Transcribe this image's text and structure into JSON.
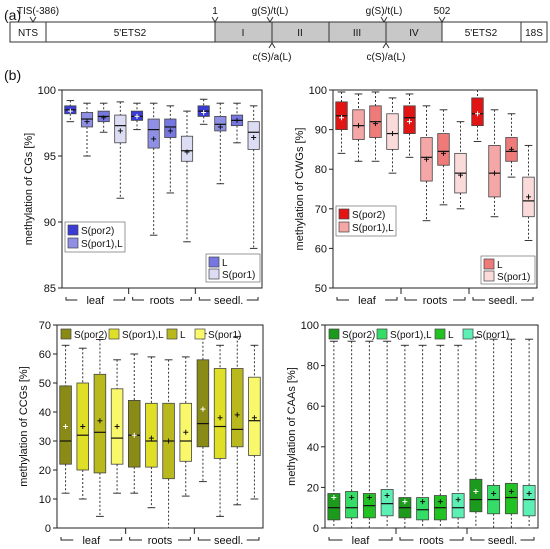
{
  "panel_a": {
    "label": "(a)",
    "left_end": "NTS",
    "right_end": "18S",
    "ets_left": "5'ETS2",
    "ets_right": "5'ETS2",
    "tis": "TIS(-386)",
    "pos_start": "1",
    "pos_end": "502",
    "segments": [
      "I",
      "II",
      "III",
      "IV"
    ],
    "motifs_top": [
      "g(S)/t(L)",
      "g(S)/t(L)"
    ],
    "motifs_bottom": [
      "c(S)/a(L)",
      "c(S)/a(L)"
    ]
  },
  "panel_b_label": "(b)",
  "colors": {
    "cg": [
      "#3b3bd6",
      "#8f8fe6",
      "#7777e2",
      "#dcdcf4"
    ],
    "cwg": [
      "#e21515",
      "#f5a6a6",
      "#ef7a7a",
      "#fbdada"
    ],
    "ccg": [
      "#8a8a16",
      "#dfdf28",
      "#b9b91e",
      "#f8f86a"
    ],
    "caa": [
      "#1c9a1c",
      "#33dd66",
      "#22c222",
      "#5cf0b4"
    ]
  },
  "chart_data": [
    {
      "type": "box",
      "ylabel": "methylation of CGs [%]",
      "ylim": [
        85,
        100
      ],
      "yticks": [
        "85",
        "90",
        "95",
        "100"
      ],
      "groups": [
        "leaf",
        "roots",
        "seedl."
      ],
      "legend": [
        "S(por2)",
        "S(por1),L",
        "L",
        "S(por1)"
      ],
      "boxes": [
        {
          "g": 0,
          "s": 0,
          "wlo": 97.6,
          "q1": 98.2,
          "med": 98.5,
          "q3": 98.8,
          "whi": 99.2,
          "mean": 98.4
        },
        {
          "g": 0,
          "s": 1,
          "wlo": 95.0,
          "q1": 97.2,
          "med": 97.8,
          "q3": 98.3,
          "whi": 99.0,
          "mean": 97.6
        },
        {
          "g": 0,
          "s": 2,
          "wlo": 96.8,
          "q1": 97.6,
          "med": 98.0,
          "q3": 98.4,
          "whi": 99.0,
          "mean": 97.9
        },
        {
          "g": 0,
          "s": 3,
          "wlo": 91.8,
          "q1": 96.0,
          "med": 97.3,
          "q3": 98.1,
          "whi": 99.1,
          "mean": 96.9
        },
        {
          "g": 1,
          "s": 0,
          "wlo": 97.0,
          "q1": 97.7,
          "med": 98.0,
          "q3": 98.4,
          "whi": 99.0,
          "mean": 98.0
        },
        {
          "g": 1,
          "s": 1,
          "wlo": 89.0,
          "q1": 95.6,
          "med": 97.0,
          "q3": 97.8,
          "whi": 99.0,
          "mean": 96.3
        },
        {
          "g": 1,
          "s": 2,
          "wlo": 92.2,
          "q1": 96.4,
          "med": 97.2,
          "q3": 97.8,
          "whi": 98.8,
          "mean": 96.9
        },
        {
          "g": 1,
          "s": 3,
          "wlo": 88.5,
          "q1": 94.6,
          "med": 95.4,
          "q3": 96.5,
          "whi": 98.4,
          "mean": 95.3
        },
        {
          "g": 2,
          "s": 0,
          "wlo": 97.4,
          "q1": 98.0,
          "med": 98.4,
          "q3": 98.8,
          "whi": 99.3,
          "mean": 98.3
        },
        {
          "g": 2,
          "s": 1,
          "wlo": 92.9,
          "q1": 96.9,
          "med": 97.4,
          "q3": 98.0,
          "whi": 99.0,
          "mean": 97.2
        },
        {
          "g": 2,
          "s": 2,
          "wlo": 96.0,
          "q1": 97.3,
          "med": 97.7,
          "q3": 98.1,
          "whi": 99.0,
          "mean": 97.7
        },
        {
          "g": 2,
          "s": 3,
          "wlo": 88.0,
          "q1": 95.5,
          "med": 96.8,
          "q3": 97.6,
          "whi": 98.8,
          "mean": 96.4
        }
      ]
    },
    {
      "type": "box",
      "ylabel": "methylation of CWGs [%]",
      "ylim": [
        50,
        100
      ],
      "yticks": [
        "50",
        "60",
        "70",
        "80",
        "90",
        "100"
      ],
      "groups": [
        "leaf",
        "roots",
        "seedl."
      ],
      "legend": [
        "S(por2)",
        "S(por1),L",
        "L",
        "S(por1)"
      ],
      "boxes": [
        {
          "g": 0,
          "s": 0,
          "wlo": 84,
          "q1": 90,
          "med": 93.5,
          "q3": 97,
          "whi": 99.5,
          "mean": 93
        },
        {
          "g": 0,
          "s": 1,
          "wlo": 82,
          "q1": 87.5,
          "med": 91,
          "q3": 95,
          "whi": 99,
          "mean": 91
        },
        {
          "g": 0,
          "s": 2,
          "wlo": 82,
          "q1": 88,
          "med": 92,
          "q3": 96,
          "whi": 99.5,
          "mean": 91.5
        },
        {
          "g": 0,
          "s": 3,
          "wlo": 79,
          "q1": 85,
          "med": 89,
          "q3": 94,
          "whi": 98,
          "mean": 89
        },
        {
          "g": 1,
          "s": 0,
          "wlo": 83,
          "q1": 89,
          "med": 93,
          "q3": 96,
          "whi": 99,
          "mean": 92
        },
        {
          "g": 1,
          "s": 1,
          "wlo": 67,
          "q1": 77,
          "med": 83,
          "q3": 88,
          "whi": 96,
          "mean": 82.5
        },
        {
          "g": 1,
          "s": 2,
          "wlo": 71,
          "q1": 81,
          "med": 84.5,
          "q3": 89,
          "whi": 95,
          "mean": 84
        },
        {
          "g": 1,
          "s": 3,
          "wlo": 70,
          "q1": 74,
          "med": 79,
          "q3": 84,
          "whi": 92,
          "mean": 78.5
        },
        {
          "g": 2,
          "s": 0,
          "wlo": 87,
          "q1": 91,
          "med": 94,
          "q3": 98,
          "whi": 100,
          "mean": 94
        },
        {
          "g": 2,
          "s": 1,
          "wlo": 68,
          "q1": 73,
          "med": 79,
          "q3": 86,
          "whi": 95,
          "mean": 79
        },
        {
          "g": 2,
          "s": 2,
          "wlo": 78,
          "q1": 82,
          "med": 84.5,
          "q3": 88,
          "whi": 94,
          "mean": 85
        },
        {
          "g": 2,
          "s": 3,
          "wlo": 62,
          "q1": 68,
          "med": 72,
          "q3": 78,
          "whi": 86,
          "mean": 73
        }
      ]
    },
    {
      "type": "box",
      "ylabel": "methylation of CCGs [%]",
      "ylim": [
        0,
        70
      ],
      "yticks": [
        "0",
        "10",
        "20",
        "30",
        "40",
        "50",
        "60",
        "70"
      ],
      "groups": [
        "leaf",
        "roots",
        "seedl."
      ],
      "legend": [
        "S(por2)",
        "S(por1),L",
        "L",
        "S(por1)"
      ],
      "boxes": [
        {
          "g": 0,
          "s": 0,
          "wlo": 12,
          "q1": 22,
          "med": 30,
          "q3": 49,
          "whi": 63,
          "mean": 35
        },
        {
          "g": 0,
          "s": 1,
          "wlo": 10,
          "q1": 20,
          "med": 32,
          "q3": 50,
          "whi": 62,
          "mean": 35
        },
        {
          "g": 0,
          "s": 2,
          "wlo": 4,
          "q1": 19,
          "med": 33,
          "q3": 53,
          "whi": 65,
          "mean": 37
        },
        {
          "g": 0,
          "s": 3,
          "wlo": 12,
          "q1": 22,
          "med": 31,
          "q3": 48,
          "whi": 58,
          "mean": 35
        },
        {
          "g": 1,
          "s": 0,
          "wlo": 12,
          "q1": 21,
          "med": 32,
          "q3": 44,
          "whi": 60,
          "mean": 32
        },
        {
          "g": 1,
          "s": 1,
          "wlo": 7,
          "q1": 21,
          "med": 30,
          "q3": 43,
          "whi": 59,
          "mean": 31
        },
        {
          "g": 1,
          "s": 2,
          "wlo": 0,
          "q1": 17,
          "med": 30,
          "q3": 43,
          "whi": 58,
          "mean": 30
        },
        {
          "g": 1,
          "s": 3,
          "wlo": 11,
          "q1": 23,
          "med": 30,
          "q3": 43,
          "whi": 59,
          "mean": 33
        },
        {
          "g": 2,
          "s": 0,
          "wlo": 16,
          "q1": 28,
          "med": 36,
          "q3": 58,
          "whi": 67,
          "mean": 41
        },
        {
          "g": 2,
          "s": 1,
          "wlo": 4,
          "q1": 24,
          "med": 35,
          "q3": 55,
          "whi": 63,
          "mean": 38
        },
        {
          "g": 2,
          "s": 2,
          "wlo": 8,
          "q1": 28,
          "med": 34,
          "q3": 55,
          "whi": 66,
          "mean": 39
        },
        {
          "g": 2,
          "s": 3,
          "wlo": 10,
          "q1": 25,
          "med": 37,
          "q3": 52,
          "whi": 63,
          "mean": 38
        }
      ]
    },
    {
      "type": "box",
      "ylabel": "methylation of CAAs [%]",
      "ylim": [
        0,
        100
      ],
      "yticks": [
        "0",
        "20",
        "40",
        "60",
        "80",
        "100"
      ],
      "groups": [
        "leaf",
        "roots",
        "seedl."
      ],
      "legend": [
        "S(por2)",
        "S(por1),L",
        "L",
        "S(por1)"
      ],
      "boxes": [
        {
          "g": 0,
          "s": 0,
          "wlo": 0,
          "q1": 4,
          "med": 10,
          "q3": 17,
          "whi": 92,
          "mean": 15
        },
        {
          "g": 0,
          "s": 1,
          "wlo": 0,
          "q1": 5,
          "med": 10,
          "q3": 18,
          "whi": 92,
          "mean": 15
        },
        {
          "g": 0,
          "s": 2,
          "wlo": 0,
          "q1": 5,
          "med": 11,
          "q3": 17,
          "whi": 92,
          "mean": 15
        },
        {
          "g": 0,
          "s": 3,
          "wlo": 0,
          "q1": 6,
          "med": 12,
          "q3": 19,
          "whi": 92,
          "mean": 16
        },
        {
          "g": 1,
          "s": 0,
          "wlo": 0,
          "q1": 5,
          "med": 10,
          "q3": 15,
          "whi": 90,
          "mean": 13
        },
        {
          "g": 1,
          "s": 1,
          "wlo": 0,
          "q1": 4,
          "med": 9,
          "q3": 15,
          "whi": 90,
          "mean": 13
        },
        {
          "g": 1,
          "s": 2,
          "wlo": 0,
          "q1": 4,
          "med": 10,
          "q3": 16,
          "whi": 90,
          "mean": 13
        },
        {
          "g": 1,
          "s": 3,
          "wlo": 0,
          "q1": 5,
          "med": 10,
          "q3": 17,
          "whi": 90,
          "mean": 14
        },
        {
          "g": 2,
          "s": 0,
          "wlo": 0,
          "q1": 8,
          "med": 14,
          "q3": 24,
          "whi": 94,
          "mean": 18
        },
        {
          "g": 2,
          "s": 1,
          "wlo": 0,
          "q1": 7,
          "med": 14,
          "q3": 21,
          "whi": 93,
          "mean": 17
        },
        {
          "g": 2,
          "s": 2,
          "wlo": 0,
          "q1": 7,
          "med": 15,
          "q3": 22,
          "whi": 93,
          "mean": 18
        },
        {
          "g": 2,
          "s": 3,
          "wlo": 0,
          "q1": 6,
          "med": 14,
          "q3": 21,
          "whi": 93,
          "mean": 17
        }
      ]
    }
  ]
}
